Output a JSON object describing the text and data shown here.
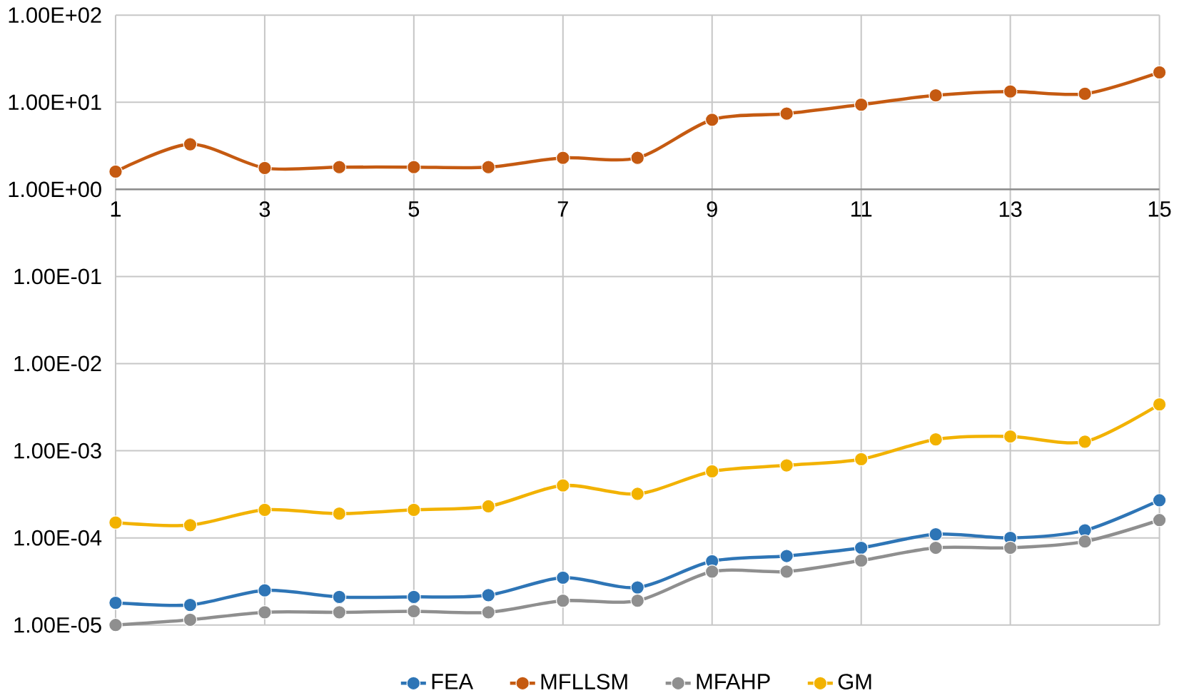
{
  "chart_data": {
    "type": "line",
    "log": "y",
    "grid": true,
    "legend": "bottom",
    "marker": "circle",
    "x": [
      1,
      2,
      3,
      4,
      5,
      6,
      7,
      8,
      9,
      10,
      11,
      12,
      13,
      14,
      15
    ],
    "xlim": [
      1,
      15
    ],
    "xticks": [
      1,
      3,
      5,
      7,
      9,
      11,
      13,
      15
    ],
    "ylim": [
      1e-05,
      100
    ],
    "yticks": [
      {
        "value": 1e-05,
        "label": "1.00E-05"
      },
      {
        "value": 0.0001,
        "label": "1.00E-04"
      },
      {
        "value": 0.001,
        "label": "1.00E-03"
      },
      {
        "value": 0.01,
        "label": "1.00E-02"
      },
      {
        "value": 0.1,
        "label": "1.00E-01"
      },
      {
        "value": 1,
        "label": "1.00E+00"
      },
      {
        "value": 10,
        "label": "1.00E+01"
      },
      {
        "value": 100,
        "label": "1.00E+02"
      }
    ],
    "series": [
      {
        "name": "FEA",
        "color": "#2e75b6",
        "values": [
          1.8e-05,
          1.7e-05,
          2.5e-05,
          2.1e-05,
          2.1e-05,
          2.2e-05,
          3.5e-05,
          2.7e-05,
          5.4e-05,
          6.2e-05,
          7.7e-05,
          0.00011,
          0.0001,
          0.000122,
          0.00027
        ]
      },
      {
        "name": "MFLLSM",
        "color": "#c55a11",
        "values": [
          1.6,
          3.3,
          1.76,
          1.8,
          1.8,
          1.8,
          2.3,
          2.3,
          6.3,
          7.4,
          9.4,
          12,
          13.3,
          12.5,
          22
        ]
      },
      {
        "name": "MFAHP",
        "color": "#8f8f8f",
        "values": [
          1e-05,
          1.15e-05,
          1.4e-05,
          1.4e-05,
          1.44e-05,
          1.4e-05,
          1.9e-05,
          1.9e-05,
          4.1e-05,
          4.1e-05,
          5.5e-05,
          7.7e-05,
          7.7e-05,
          9.1e-05,
          0.00016
        ]
      },
      {
        "name": "GM",
        "color": "#f2b200",
        "values": [
          0.00015,
          0.00014,
          0.00021,
          0.00019,
          0.00021,
          0.00023,
          0.0004,
          0.00032,
          0.00058,
          0.00068,
          0.0008,
          0.00135,
          0.00146,
          0.00127,
          0.0034
        ]
      }
    ]
  }
}
